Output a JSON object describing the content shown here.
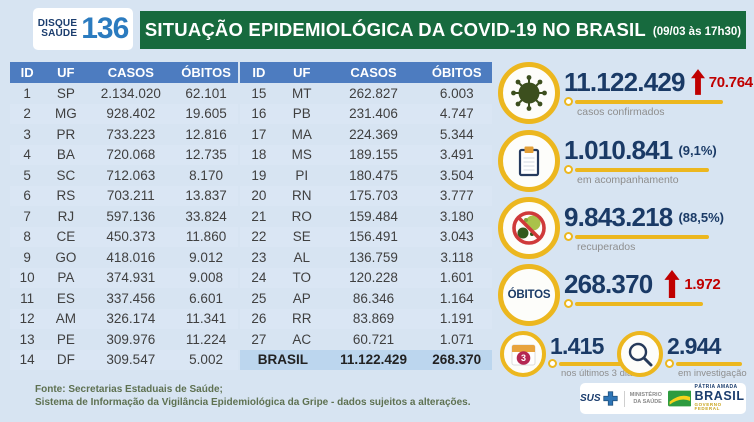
{
  "header": {
    "logo": {
      "line1": "DISQUE",
      "line2": "SAÚDE",
      "number": "136"
    },
    "title": "SITUAÇÃO EPIDEMIOLÓGICA DA COVID-19 NO BRASIL",
    "timestamp": "(09/03 às 17h30)"
  },
  "table": {
    "columns": [
      "ID",
      "UF",
      "CASOS",
      "ÓBITOS"
    ]
  },
  "chart_data": {
    "type": "table",
    "title": "SITUAÇÃO EPIDEMIOLÓGICA DA COVID-19 NO BRASIL (09/03 às 17h30)",
    "columns": [
      "ID",
      "UF",
      "CASOS",
      "ÓBITOS"
    ],
    "rows": [
      [
        1,
        "SP",
        2134020,
        62101
      ],
      [
        2,
        "MG",
        928402,
        19605
      ],
      [
        3,
        "PR",
        733223,
        12816
      ],
      [
        4,
        "BA",
        720068,
        12735
      ],
      [
        5,
        "SC",
        712063,
        8170
      ],
      [
        6,
        "RS",
        703211,
        13837
      ],
      [
        7,
        "RJ",
        597136,
        33824
      ],
      [
        8,
        "CE",
        450373,
        11860
      ],
      [
        9,
        "GO",
        418016,
        9012
      ],
      [
        10,
        "PA",
        374931,
        9008
      ],
      [
        11,
        "ES",
        337456,
        6601
      ],
      [
        12,
        "AM",
        326174,
        11341
      ],
      [
        13,
        "PE",
        309976,
        11224
      ],
      [
        14,
        "DF",
        309547,
        5002
      ],
      [
        15,
        "MT",
        262827,
        6003
      ],
      [
        16,
        "PB",
        231406,
        4747
      ],
      [
        17,
        "MA",
        224369,
        5344
      ],
      [
        18,
        "MS",
        189155,
        3491
      ],
      [
        19,
        "PI",
        180475,
        3504
      ],
      [
        20,
        "RN",
        175703,
        3777
      ],
      [
        21,
        "RO",
        159484,
        3180
      ],
      [
        22,
        "SE",
        156491,
        3043
      ],
      [
        23,
        "AL",
        136759,
        3118
      ],
      [
        24,
        "TO",
        120228,
        1601
      ],
      [
        25,
        "AP",
        86346,
        1164
      ],
      [
        26,
        "RR",
        83869,
        1191
      ],
      [
        27,
        "AC",
        60721,
        1071
      ]
    ],
    "total": {
      "label": "BRASIL",
      "casos": 11122429,
      "obitos": 268370
    },
    "summary": {
      "casos_confirmados": 11122429,
      "novos_casos": 70764,
      "em_acompanhamento": 1010841,
      "em_acompanhamento_pct": "(9,1%)",
      "recuperados": 9843218,
      "recuperados_pct": "(88,5%)",
      "obitos": 268370,
      "novos_obitos": 1972,
      "obitos_ultimos_3_dias": 1415,
      "em_investigacao": 2944
    }
  },
  "stats": {
    "confirmed_label": "casos confirmados",
    "monitoring_label": "em acompanhamento",
    "recovered_label": "recuperados",
    "deaths_badge": "ÓBITOS",
    "last3_label": "nos últimos 3 dias",
    "invest_label": "em investigação",
    "calendar_day": "3"
  },
  "footer": {
    "source_line1": "Fonte: Secretarias Estaduais de Saúde;",
    "source_line2": "Sistema de Informação da Vigilância Epidemiológica da Gripe - dados sujeitos a alterações.",
    "logos": {
      "sus": "SUS",
      "ministry_line1": "MINISTÉRIO",
      "ministry_line2": "DA SAÚDE",
      "patria": "PÁTRIA AMADA",
      "brasil": "BRASIL",
      "governo": "GOVERNO FEDERAL"
    }
  },
  "colors": {
    "background": "#d7e4f2",
    "banner_green": "#176a3e",
    "table_header_blue": "#4d7cc0",
    "row_stripe": "#dae6f4",
    "total_row": "#bcd6ee",
    "stat_navy": "#1a3a66",
    "alert_red": "#c00000",
    "accent_gold": "#ecb71f",
    "label_gray": "#8e8e8e",
    "source_green": "#5e7151"
  }
}
